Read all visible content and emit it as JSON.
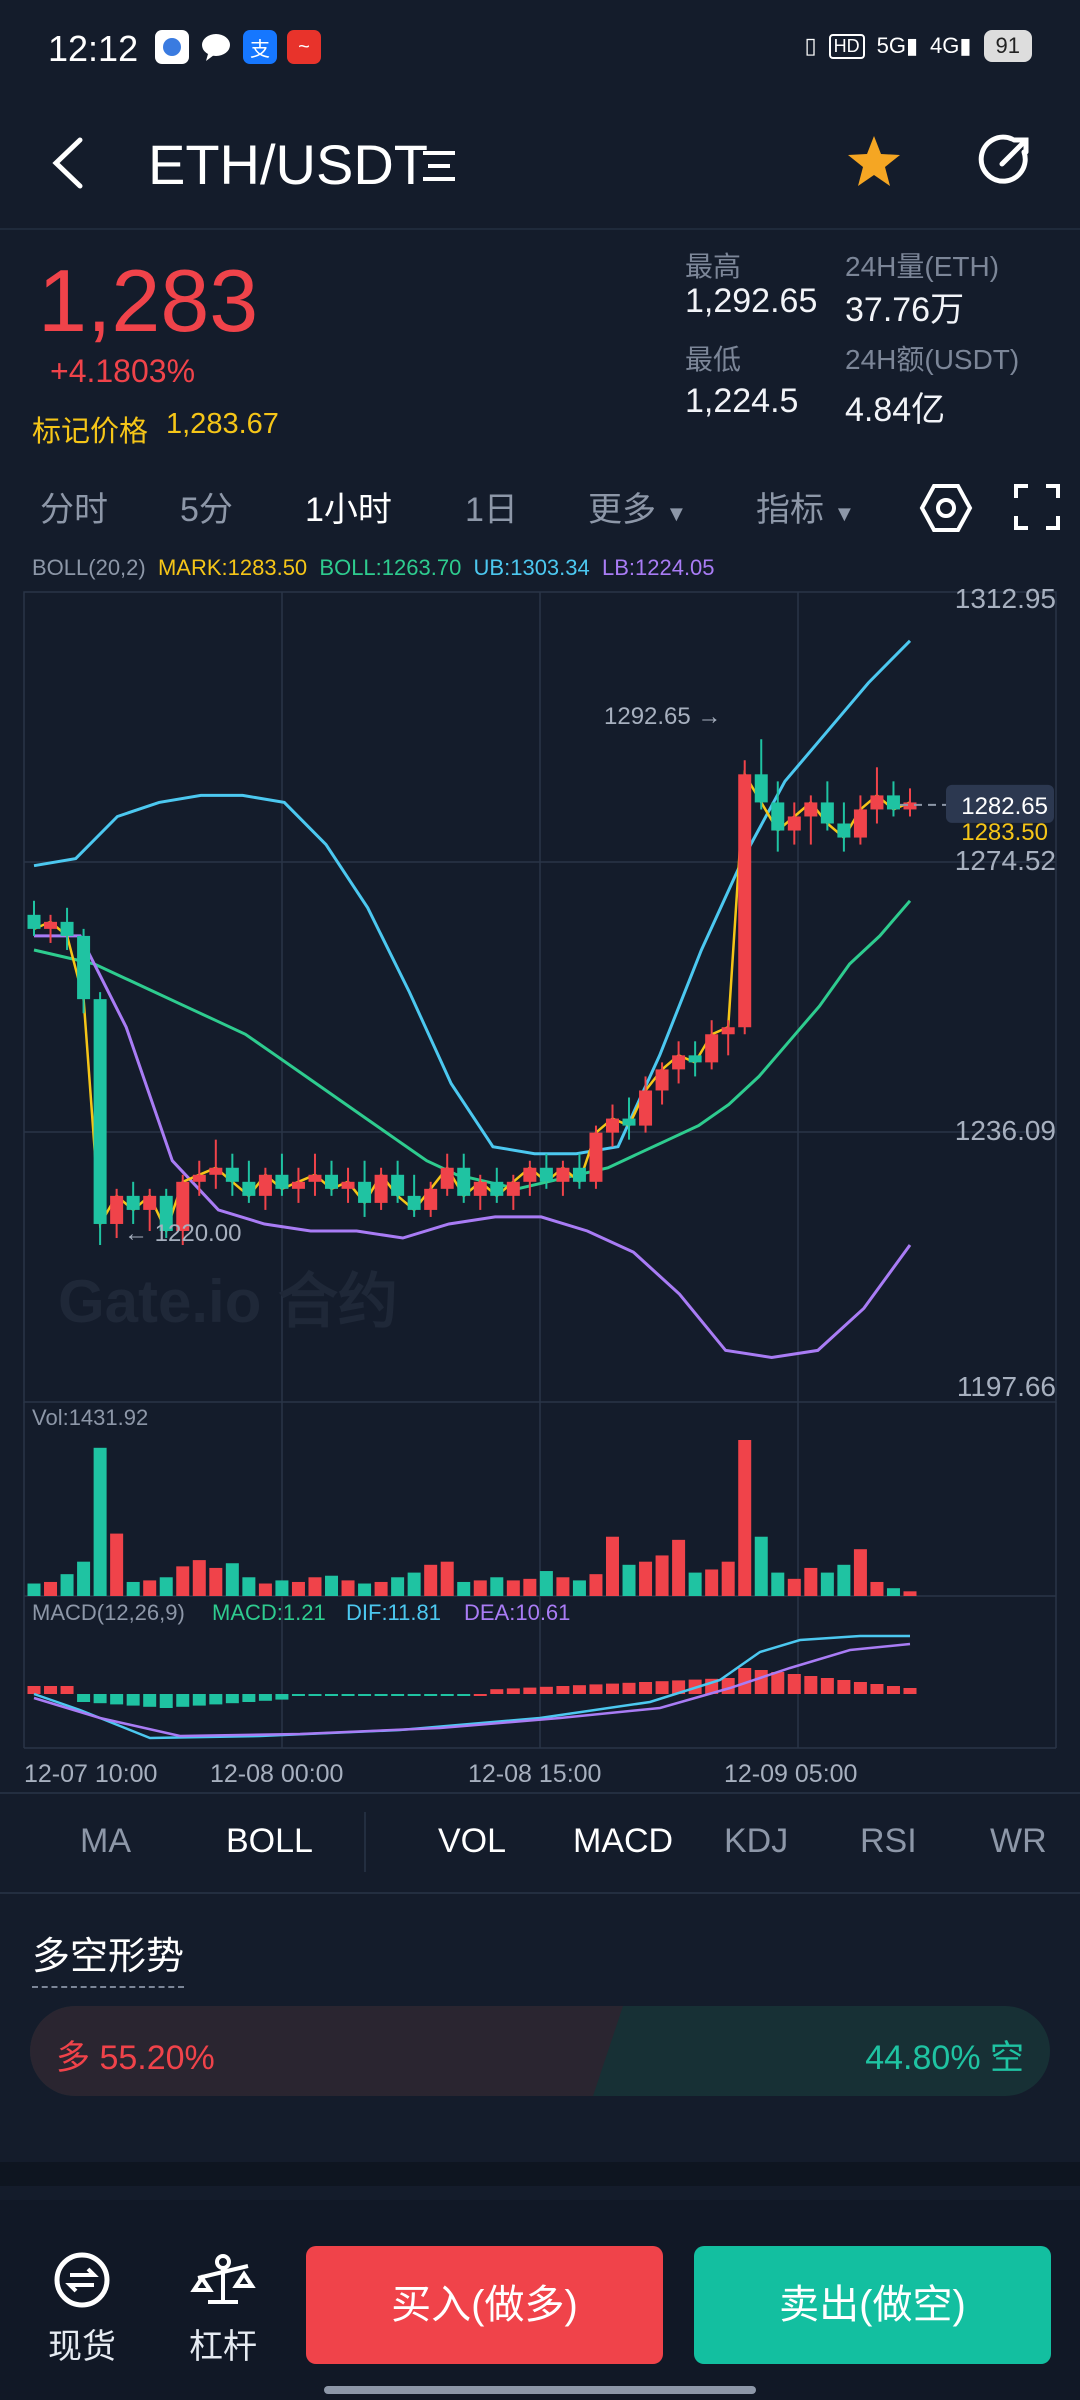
{
  "status": {
    "time": "12:12",
    "network1": "5G",
    "network2": "4G",
    "hd": "HD",
    "battery": "91"
  },
  "header": {
    "pair": "ETH/USDT"
  },
  "ticker": {
    "price": "1,283",
    "change": "+4.1803%",
    "mark_label": "标记价格",
    "mark_value": "1,283.67",
    "high_label": "最高",
    "high_value": "1,292.65",
    "low_label": "最低",
    "low_value": "1,224.5",
    "vol_label": "24H量(ETH)",
    "vol_value": "37.76万",
    "amt_label": "24H额(USDT)",
    "amt_value": "4.84亿"
  },
  "timeframes": {
    "t1": "分时",
    "t2": "5分",
    "t3": "1小时",
    "t4": "1日",
    "more": "更多",
    "indicators": "指标"
  },
  "boll_line": {
    "name": "BOLL(20,2)",
    "mark": "MARK:1283.50",
    "boll": "BOLL:1263.70",
    "ub": "UB:1303.34",
    "lb": "LB:1224.05"
  },
  "chart_data": {
    "type": "candlestick",
    "y_axis_labels": [
      "1312.95",
      "1274.52",
      "1236.09",
      "1197.66"
    ],
    "ylim": [
      1197.66,
      1312.95
    ],
    "last_price": "1282.65",
    "mark_price": "1283.50",
    "high_annotation": "1292.65 →",
    "low_annotation": "← 1220.00",
    "x_labels": [
      "12-07 10:00",
      "12-08 00:00",
      "12-08 15:00",
      "12-09 05:00"
    ],
    "candles": [
      [
        1267,
        1269,
        1264,
        1265
      ],
      [
        1265,
        1267,
        1263,
        1266
      ],
      [
        1266,
        1268,
        1262,
        1264
      ],
      [
        1264,
        1265,
        1253,
        1255
      ],
      [
        1255,
        1256,
        1220,
        1223
      ],
      [
        1223,
        1228,
        1221,
        1227
      ],
      [
        1227,
        1229,
        1223,
        1225
      ],
      [
        1225,
        1228,
        1222,
        1227
      ],
      [
        1227,
        1228,
        1221,
        1222
      ],
      [
        1222,
        1230,
        1220,
        1229
      ],
      [
        1229,
        1232,
        1227,
        1230
      ],
      [
        1230,
        1235,
        1228,
        1231
      ],
      [
        1231,
        1233,
        1227,
        1229
      ],
      [
        1229,
        1232,
        1226,
        1227
      ],
      [
        1227,
        1231,
        1225,
        1230
      ],
      [
        1230,
        1233,
        1227,
        1228
      ],
      [
        1228,
        1231,
        1226,
        1229
      ],
      [
        1229,
        1233,
        1227,
        1230
      ],
      [
        1230,
        1232,
        1227,
        1228
      ],
      [
        1228,
        1231,
        1226,
        1229
      ],
      [
        1229,
        1232,
        1224,
        1226
      ],
      [
        1226,
        1231,
        1225,
        1230
      ],
      [
        1230,
        1232,
        1226,
        1227
      ],
      [
        1227,
        1230,
        1224,
        1225
      ],
      [
        1225,
        1229,
        1224,
        1228
      ],
      [
        1228,
        1233,
        1227,
        1231
      ],
      [
        1231,
        1233,
        1226,
        1227
      ],
      [
        1227,
        1230,
        1225,
        1229
      ],
      [
        1229,
        1231,
        1226,
        1227
      ],
      [
        1227,
        1230,
        1225,
        1229
      ],
      [
        1229,
        1232,
        1227,
        1231
      ],
      [
        1231,
        1233,
        1228,
        1229
      ],
      [
        1229,
        1232,
        1227,
        1231
      ],
      [
        1231,
        1233,
        1228,
        1229
      ],
      [
        1229,
        1237,
        1228,
        1236
      ],
      [
        1236,
        1240,
        1234,
        1238
      ],
      [
        1238,
        1241,
        1235,
        1237
      ],
      [
        1237,
        1244,
        1236,
        1242
      ],
      [
        1242,
        1246,
        1240,
        1245
      ],
      [
        1245,
        1249,
        1243,
        1247
      ],
      [
        1247,
        1249,
        1244,
        1246
      ],
      [
        1246,
        1252,
        1245,
        1250
      ],
      [
        1250,
        1252,
        1247,
        1251
      ],
      [
        1251,
        1289,
        1250,
        1287
      ],
      [
        1287,
        1292,
        1282,
        1283
      ],
      [
        1283,
        1286,
        1276,
        1279
      ],
      [
        1279,
        1283,
        1277,
        1281
      ],
      [
        1281,
        1284,
        1277,
        1283
      ],
      [
        1283,
        1286,
        1279,
        1280
      ],
      [
        1280,
        1283,
        1276,
        1278
      ],
      [
        1278,
        1284,
        1277,
        1282
      ],
      [
        1282,
        1288,
        1280,
        1284
      ],
      [
        1284,
        1286,
        1281,
        1282
      ],
      [
        1282,
        1285,
        1281,
        1283
      ]
    ],
    "boll_mid": [
      1262,
      1261,
      1260,
      1258,
      1256,
      1254,
      1252,
      1250,
      1247,
      1244,
      1241,
      1238,
      1235,
      1232,
      1230,
      1229,
      1228,
      1229,
      1230,
      1231,
      1233,
      1235,
      1237,
      1240,
      1244,
      1249,
      1254,
      1260,
      1264,
      1269
    ],
    "boll_upper": [
      1274,
      1275,
      1281,
      1283,
      1284,
      1284,
      1283,
      1277,
      1268,
      1256,
      1243,
      1234,
      1233,
      1233,
      1234,
      1247,
      1262,
      1275,
      1286,
      1293,
      1300,
      1306
    ],
    "boll_lower": [
      1264,
      1264,
      1251,
      1232,
      1225,
      1223,
      1222,
      1222,
      1221,
      1223,
      1224,
      1224,
      1222,
      1219,
      1213,
      1205,
      1204,
      1205,
      1211,
      1220
    ],
    "volume_label": "Vol:1431.92",
    "volumes": [
      8,
      9,
      14,
      22,
      95,
      40,
      9,
      10,
      12,
      19,
      23,
      18,
      21,
      12,
      8,
      10,
      9,
      12,
      13,
      10,
      8,
      9,
      12,
      15,
      20,
      22,
      9,
      10,
      12,
      10,
      11,
      16,
      12,
      10,
      14,
      38,
      20,
      22,
      26,
      36,
      15,
      17,
      22,
      100,
      38,
      15,
      11,
      18,
      15,
      20,
      30,
      9,
      5,
      3
    ],
    "macd_label": "MACD(12,26,9)",
    "macd_value": "MACD:1.21",
    "dif_value": "DIF:11.81",
    "dea_value": "DEA:10.61"
  },
  "indicator_tabs": {
    "ma": "MA",
    "boll": "BOLL",
    "vol": "VOL",
    "macd": "MACD",
    "kdj": "KDJ",
    "rsi": "RSI",
    "wr": "WR"
  },
  "sentiment": {
    "title": "多空形势",
    "long": "多 55.20%",
    "short": "44.80% 空",
    "long_pct": 55.2
  },
  "bottom": {
    "spot": "现货",
    "leverage": "杠杆",
    "buy": "买入(做多)",
    "sell": "卖出(做空)"
  },
  "watermark": "Gate.io 合约",
  "colors": {
    "up": "#f0434a",
    "down": "#1fc3a2",
    "ub": "#4cc8f0",
    "mid": "#2ecc8f",
    "lb": "#a97cf5",
    "mark": "#f5c518"
  }
}
